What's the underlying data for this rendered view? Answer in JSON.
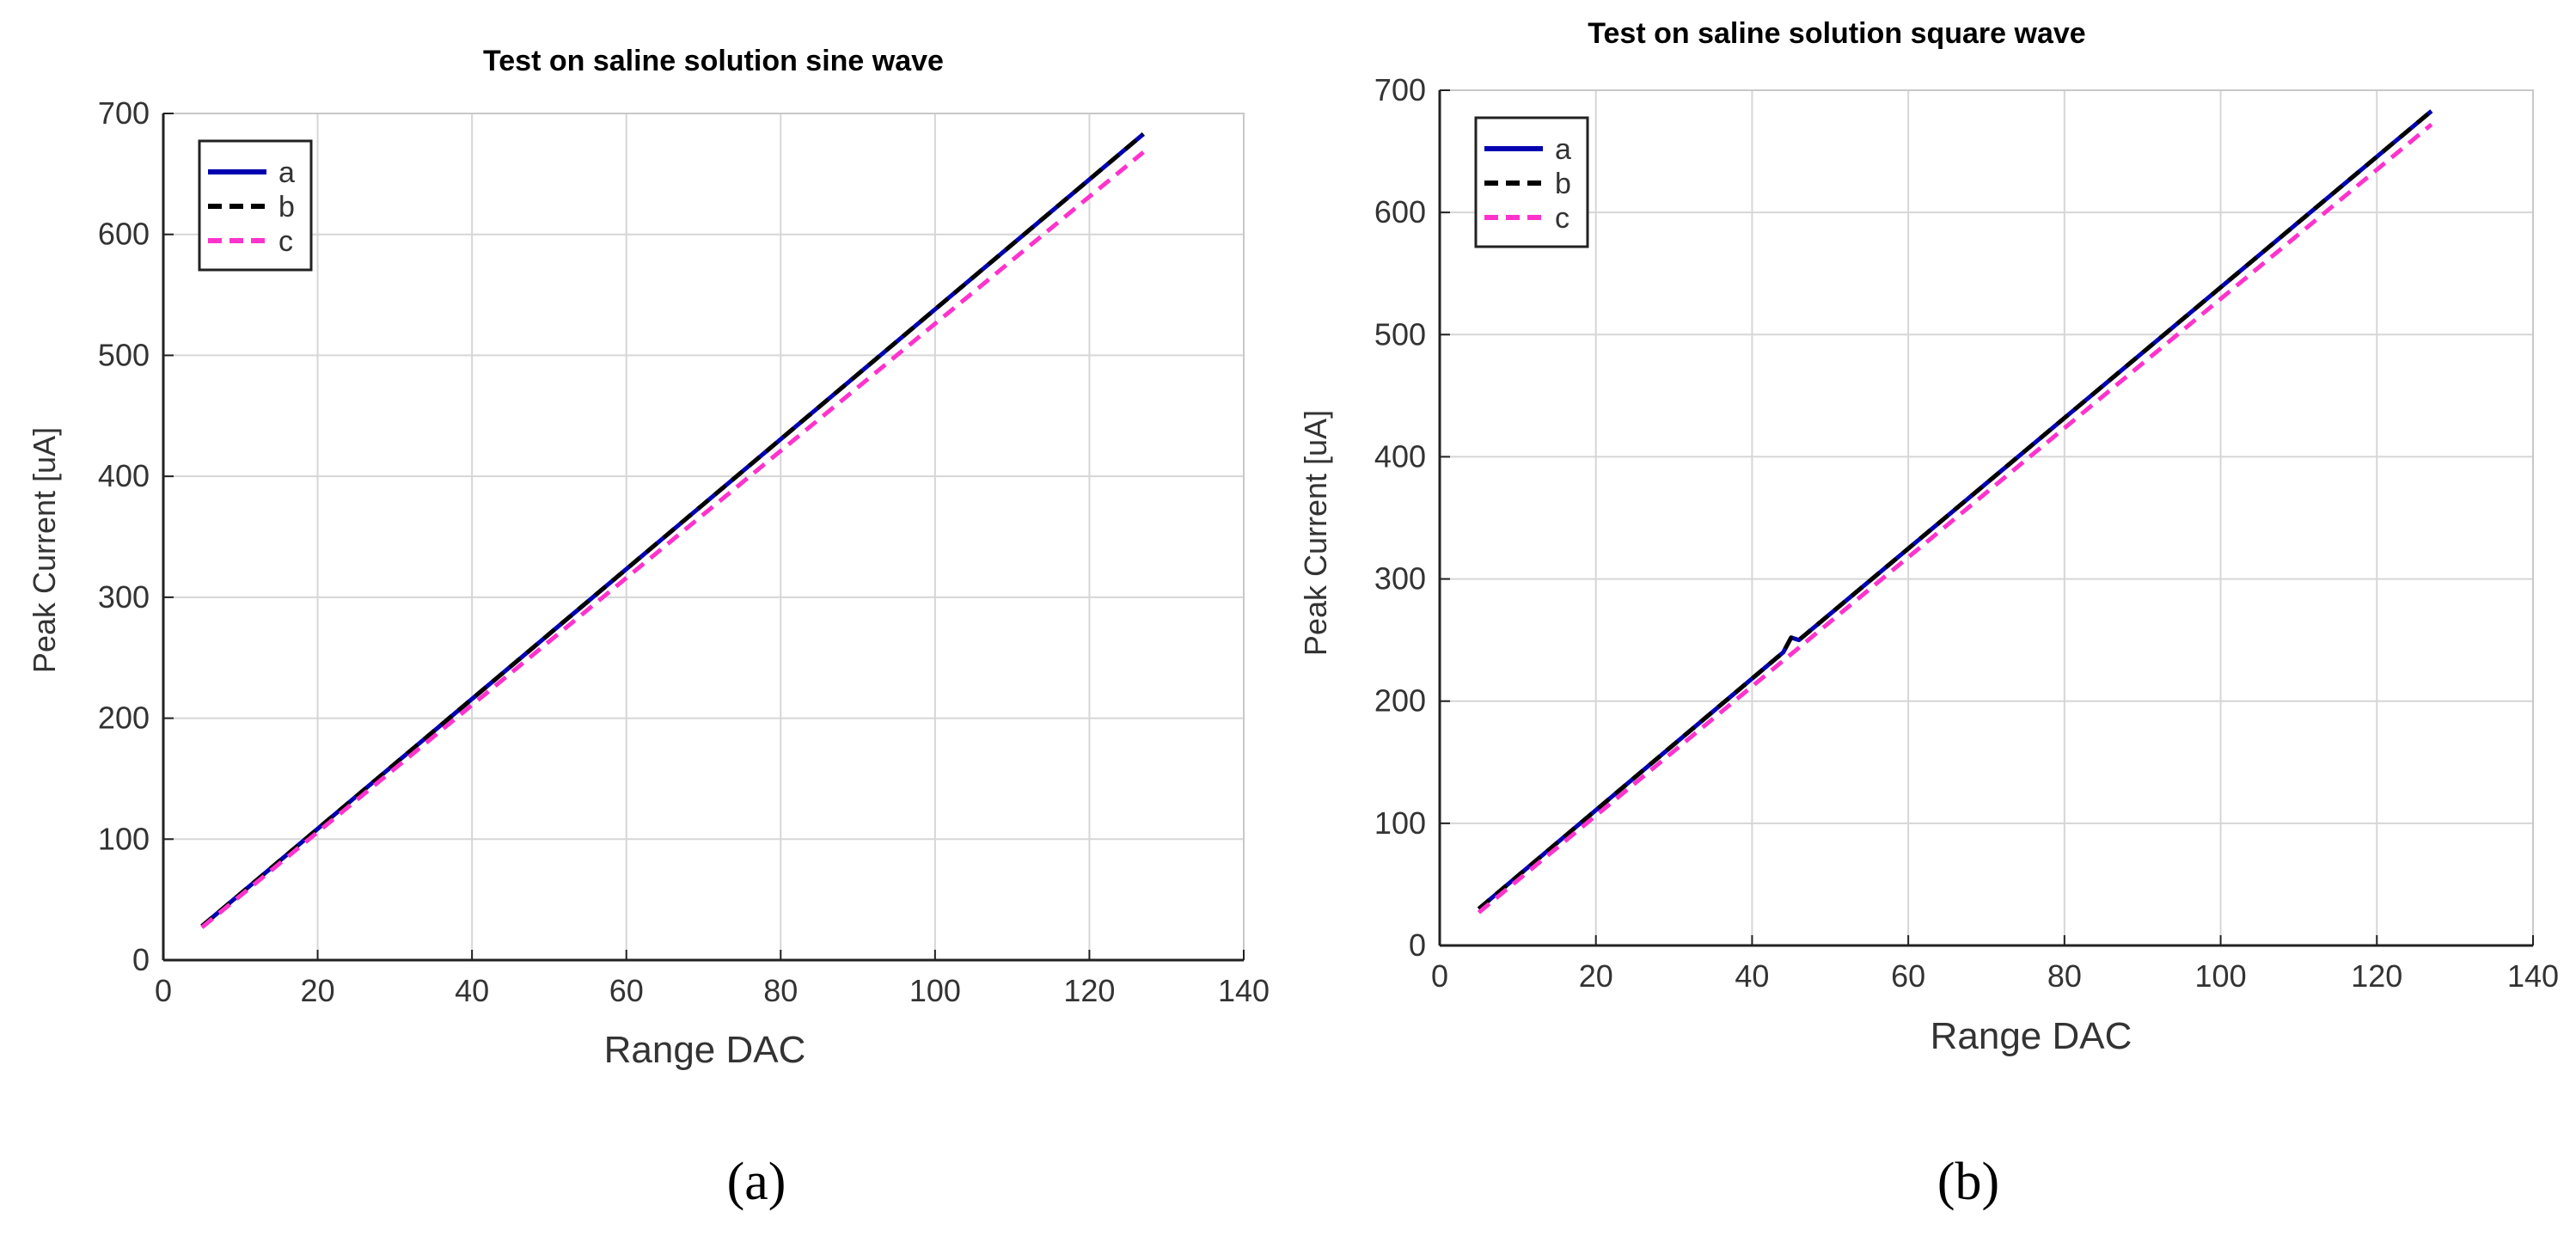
{
  "chart_data": [
    {
      "type": "line",
      "panel_label": "(a)",
      "title": "Test on saline solution sine wave",
      "xlabel": "Range DAC",
      "ylabel": "Peak Current [uA]",
      "xlim": [
        0,
        140
      ],
      "ylim": [
        0,
        700
      ],
      "xticks": [
        0,
        20,
        40,
        60,
        80,
        100,
        120,
        140
      ],
      "yticks": [
        0,
        100,
        200,
        300,
        400,
        500,
        600,
        700
      ],
      "grid": true,
      "legend_position": "top-left",
      "series": [
        {
          "name": "a",
          "color": "#0000b0",
          "style": "solid",
          "x": [
            5,
            127
          ],
          "y": [
            28,
            683
          ]
        },
        {
          "name": "b",
          "color": "#000000",
          "style": "dashed",
          "x": [
            5,
            127
          ],
          "y": [
            28,
            683
          ]
        },
        {
          "name": "c",
          "color": "#ff33cc",
          "style": "dashed",
          "x": [
            5,
            127
          ],
          "y": [
            27,
            668
          ]
        }
      ]
    },
    {
      "type": "line",
      "panel_label": "(b)",
      "title": "Test on saline solution square wave",
      "xlabel": "Range DAC",
      "ylabel": "Peak Current [uA]",
      "xlim": [
        0,
        140
      ],
      "ylim": [
        0,
        700
      ],
      "xticks": [
        0,
        20,
        40,
        60,
        80,
        100,
        120,
        140
      ],
      "yticks": [
        0,
        100,
        200,
        300,
        400,
        500,
        600,
        700
      ],
      "grid": true,
      "legend_position": "top-left",
      "series": [
        {
          "name": "a",
          "color": "#0000b0",
          "style": "solid",
          "x": [
            5,
            44,
            45,
            46,
            127
          ],
          "y": [
            30,
            240,
            252,
            250,
            683
          ]
        },
        {
          "name": "b",
          "color": "#000000",
          "style": "dashed",
          "x": [
            5,
            44,
            45,
            46,
            127
          ],
          "y": [
            30,
            240,
            252,
            250,
            683
          ]
        },
        {
          "name": "c",
          "color": "#ff33cc",
          "style": "dashed",
          "x": [
            5,
            127
          ],
          "y": [
            27,
            672
          ]
        }
      ]
    }
  ]
}
